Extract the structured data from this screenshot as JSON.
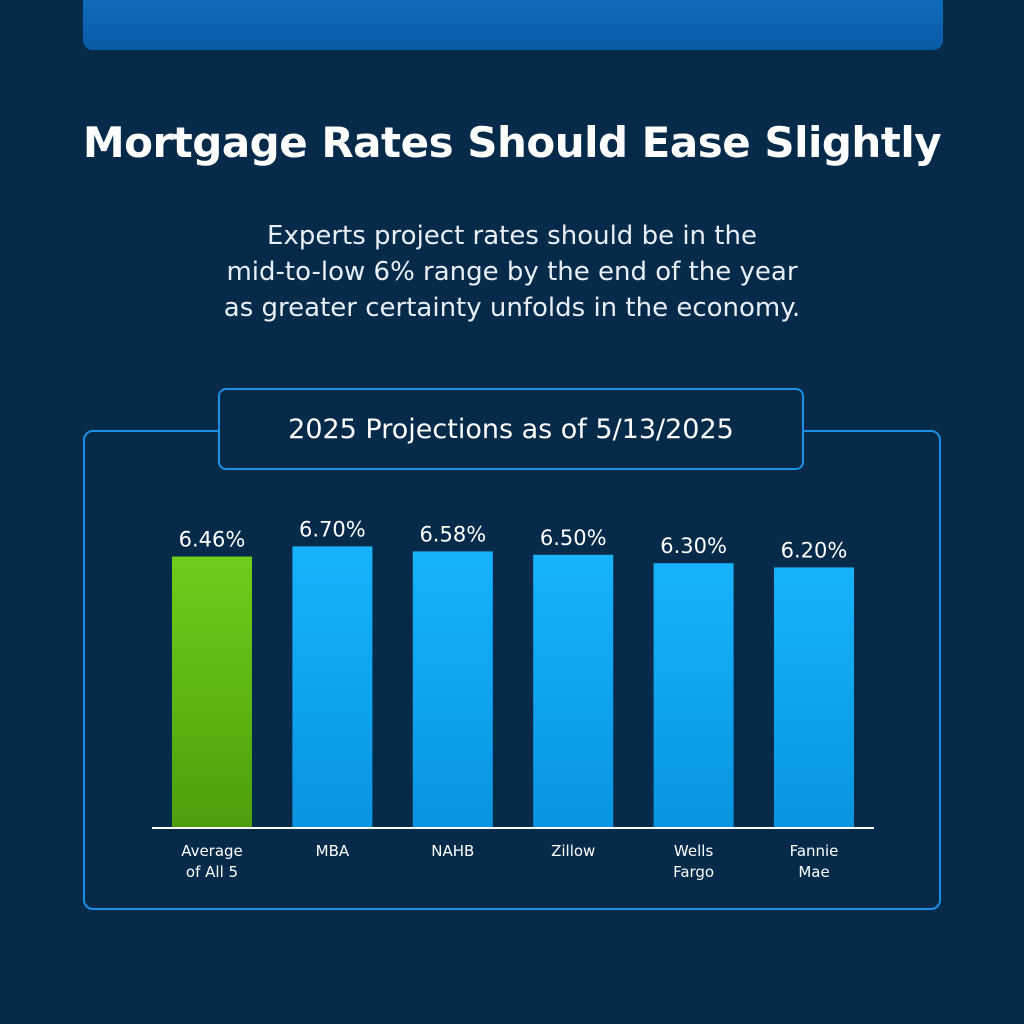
{
  "headline": "Mortgage Rates Should Ease Slightly",
  "subtitle": {
    "line1": "Experts project rates should be in the",
    "line2": "mid-to-low 6% range by the end of the year",
    "line3": "as greater certainty unfolds in the economy."
  },
  "colors": {
    "background": "#062b4a",
    "accent_border": "#1a8fe6",
    "average_bar_top": "#6fcd1a",
    "average_bar_bottom": "#4e9e0c",
    "bar_top": "#16b3fb",
    "bar_bottom": "#0a94e0"
  },
  "chart_data": {
    "type": "bar",
    "title": "2025 Projections as of 5/13/2025",
    "categories": [
      [
        "Average",
        "of All 5"
      ],
      [
        "MBA"
      ],
      [
        "NAHB"
      ],
      [
        "Zillow"
      ],
      [
        "Wells",
        "Fargo"
      ],
      [
        "Fannie",
        "Mae"
      ]
    ],
    "values": [
      6.46,
      6.7,
      6.58,
      6.5,
      6.3,
      6.2
    ],
    "value_labels": [
      "6.46%",
      "6.70%",
      "6.58%",
      "6.50%",
      "6.30%",
      "6.20%"
    ],
    "highlight_index": 0,
    "xlabel": "",
    "ylabel": "",
    "ylim": [
      0,
      6.9
    ],
    "grid": false,
    "legend": "none"
  }
}
